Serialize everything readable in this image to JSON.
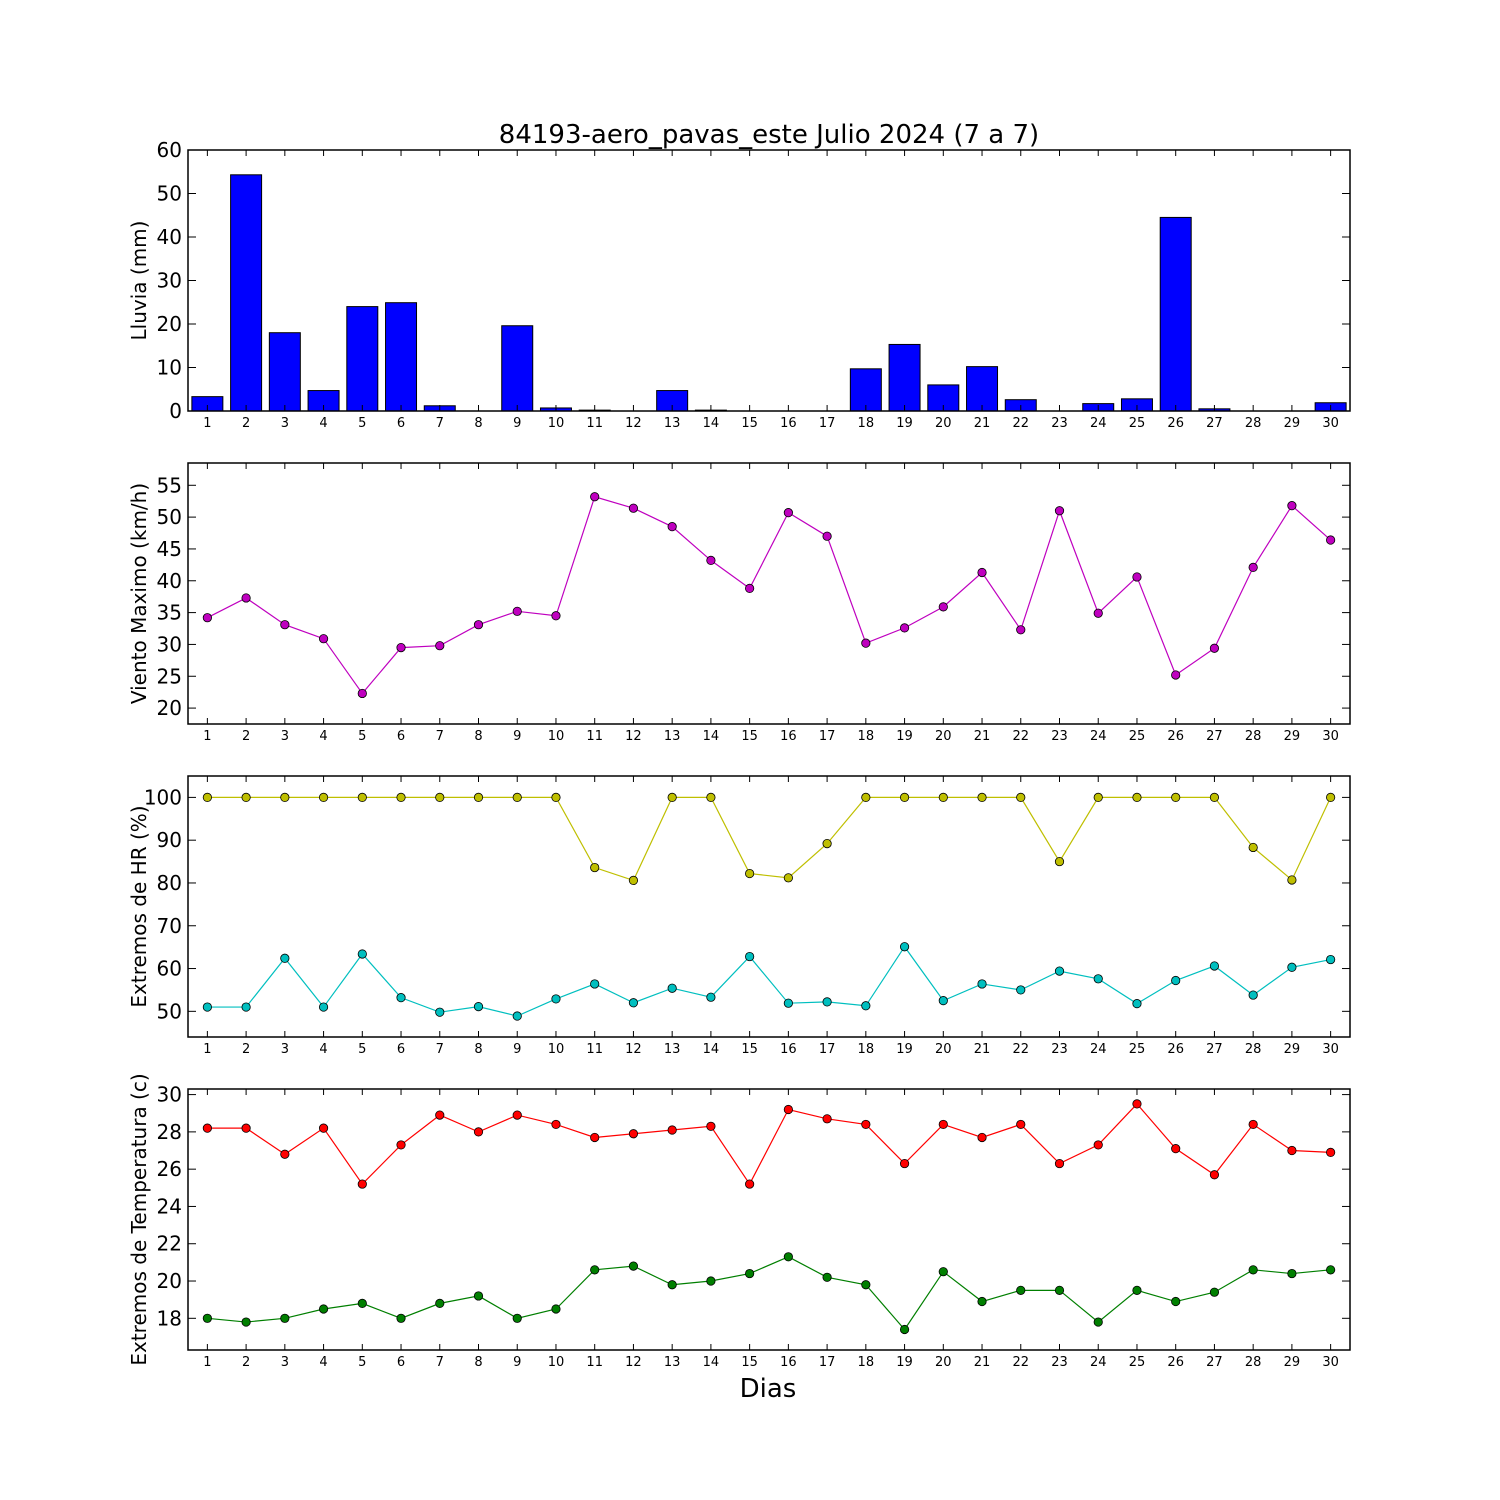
{
  "figure": {
    "title": "84193-aero_pavas_este Julio 2024  (7 a 7)",
    "xlabel": "Dias"
  },
  "chart_data": [
    {
      "type": "bar",
      "ylabel": "Lluvia (mm)",
      "x": [
        1,
        2,
        3,
        4,
        5,
        6,
        7,
        8,
        9,
        10,
        11,
        12,
        13,
        14,
        15,
        16,
        17,
        18,
        19,
        20,
        21,
        22,
        23,
        24,
        25,
        26,
        27,
        28,
        29,
        30
      ],
      "ylim": [
        0,
        60
      ],
      "yticks": [
        0,
        10,
        20,
        30,
        40,
        50,
        60
      ],
      "series": [
        {
          "color": "#0000ff",
          "values": [
            3.3,
            54.3,
            18.0,
            4.7,
            24.0,
            24.9,
            1.2,
            0,
            19.6,
            0.7,
            0.2,
            0,
            4.7,
            0.2,
            0,
            0,
            0,
            9.7,
            15.3,
            6.0,
            10.2,
            2.6,
            0,
            1.7,
            2.8,
            44.5,
            0.5,
            0,
            0,
            1.9
          ]
        }
      ]
    },
    {
      "type": "line",
      "ylabel": "Viento Maximo (km/h)",
      "x": [
        1,
        2,
        3,
        4,
        5,
        6,
        7,
        8,
        9,
        10,
        11,
        12,
        13,
        14,
        15,
        16,
        17,
        18,
        19,
        20,
        21,
        22,
        23,
        24,
        25,
        26,
        27,
        28,
        29,
        30
      ],
      "ylim": [
        17.5,
        58.5
      ],
      "yticks": [
        20,
        25,
        30,
        35,
        40,
        45,
        50,
        55
      ],
      "series": [
        {
          "color": "#bf00bf",
          "values": [
            34.2,
            37.3,
            33.1,
            30.9,
            22.3,
            29.5,
            29.8,
            33.1,
            35.2,
            34.5,
            53.2,
            51.4,
            48.5,
            43.2,
            38.8,
            50.7,
            47.0,
            30.2,
            32.6,
            35.9,
            41.3,
            32.3,
            51.0,
            34.9,
            40.6,
            25.2,
            29.4,
            42.1,
            51.8,
            46.4
          ]
        }
      ]
    },
    {
      "type": "line",
      "ylabel": "Extremos de HR (%)",
      "x": [
        1,
        2,
        3,
        4,
        5,
        6,
        7,
        8,
        9,
        10,
        11,
        12,
        13,
        14,
        15,
        16,
        17,
        18,
        19,
        20,
        21,
        22,
        23,
        24,
        25,
        26,
        27,
        28,
        29,
        30
      ],
      "ylim": [
        44,
        105
      ],
      "yticks": [
        50,
        60,
        70,
        80,
        90,
        100
      ],
      "series": [
        {
          "color": "#bfbf00",
          "values": [
            100,
            100,
            100,
            100,
            100,
            100,
            100,
            100,
            100,
            100,
            83.6,
            80.6,
            100,
            100,
            82.2,
            81.2,
            89.2,
            100,
            100,
            100,
            100,
            100,
            85.0,
            100,
            100,
            100,
            100,
            88.3,
            80.7,
            100
          ]
        },
        {
          "color": "#00bfbf",
          "values": [
            51.0,
            51.0,
            62.4,
            51.0,
            63.4,
            53.2,
            49.8,
            51.1,
            48.9,
            52.9,
            56.4,
            52.0,
            55.4,
            53.3,
            62.8,
            51.9,
            52.2,
            51.3,
            65.1,
            52.5,
            56.4,
            55.0,
            59.4,
            57.6,
            51.8,
            57.2,
            60.6,
            53.8,
            60.3,
            62.1
          ]
        }
      ]
    },
    {
      "type": "line",
      "ylabel": "Extremos de Temperatura (c)",
      "x": [
        1,
        2,
        3,
        4,
        5,
        6,
        7,
        8,
        9,
        10,
        11,
        12,
        13,
        14,
        15,
        16,
        17,
        18,
        19,
        20,
        21,
        22,
        23,
        24,
        25,
        26,
        27,
        28,
        29,
        30
      ],
      "ylim": [
        16.3,
        30.3
      ],
      "yticks": [
        18,
        20,
        22,
        24,
        26,
        28,
        30
      ],
      "series": [
        {
          "color": "#ff0000",
          "values": [
            28.2,
            28.2,
            26.8,
            28.2,
            25.2,
            27.3,
            28.9,
            28.0,
            28.9,
            28.4,
            27.7,
            27.9,
            28.1,
            28.3,
            25.2,
            29.2,
            28.7,
            28.4,
            26.3,
            28.4,
            27.7,
            28.4,
            26.3,
            27.3,
            29.5,
            27.1,
            25.7,
            28.4,
            27.0,
            26.9
          ]
        },
        {
          "color": "#007f00",
          "values": [
            18.0,
            17.8,
            18.0,
            18.5,
            18.8,
            18.0,
            18.8,
            19.2,
            18.0,
            18.5,
            20.6,
            20.8,
            19.8,
            20.0,
            20.4,
            21.3,
            20.2,
            19.8,
            17.4,
            20.5,
            18.9,
            19.5,
            19.5,
            17.8,
            19.5,
            18.9,
            19.4,
            20.6,
            20.4,
            20.6
          ]
        }
      ]
    }
  ]
}
